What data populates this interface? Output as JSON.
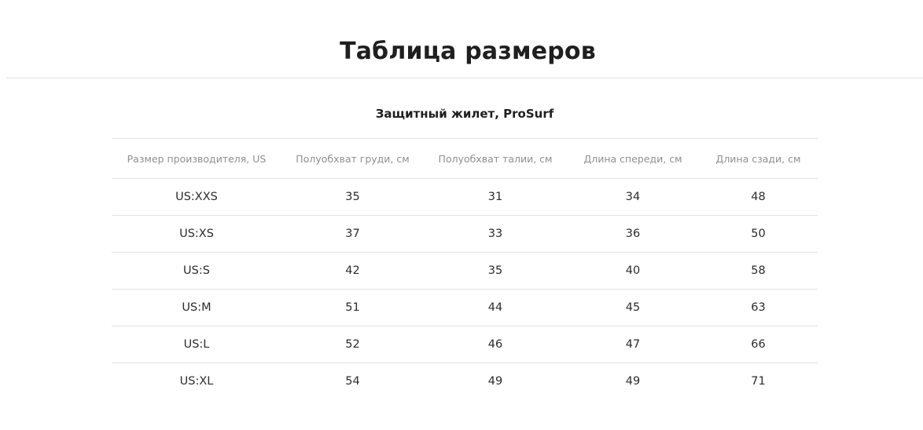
{
  "page": {
    "title": "Таблица размеров"
  },
  "size_table": {
    "title": "Защитный жилет, ProSurf",
    "headers": [
      "Размер производителя, US",
      "Полуобхват груди, см",
      "Полуобхват талии, см",
      "Длина спереди, см",
      "Длина сзади, см"
    ],
    "rows": [
      [
        "US:XXS",
        "35",
        "31",
        "34",
        "48"
      ],
      [
        "US:XS",
        "37",
        "33",
        "36",
        "50"
      ],
      [
        "US:S",
        "42",
        "35",
        "40",
        "58"
      ],
      [
        "US:M",
        "51",
        "44",
        "45",
        "63"
      ],
      [
        "US:L",
        "52",
        "46",
        "47",
        "66"
      ],
      [
        "US:XL",
        "54",
        "49",
        "49",
        "71"
      ]
    ]
  }
}
